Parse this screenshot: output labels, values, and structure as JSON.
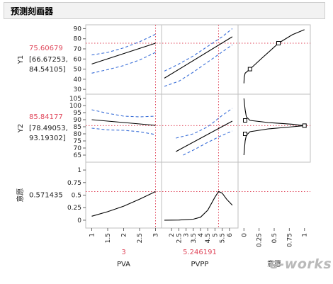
{
  "header": {
    "title": "预测刻画器"
  },
  "responses": [
    {
      "name": "Y1",
      "value": "75.60679",
      "ci": "[66.67253,",
      "ci2": "84.54105]"
    },
    {
      "name": "Y2",
      "value": "85.84177",
      "ci": "[78.49053,",
      "ci2": "93.19302]"
    },
    {
      "name": "意愿",
      "value": "0.571435"
    }
  ],
  "factors": [
    {
      "name": "PVA",
      "value": "3"
    },
    {
      "name": "PVPP",
      "value": "5.246191"
    },
    {
      "name": "意愿"
    }
  ],
  "watermark": "e-works",
  "colors": {
    "fit": "#000000",
    "ci": "#3a6fd8",
    "crosshair": "#e0475b",
    "frame": "#bfbfbf"
  },
  "chart_data": {
    "type": "line",
    "xaxes": [
      {
        "name": "PVA",
        "range": [
          0.9,
          3.1
        ],
        "ticks": [
          1,
          1.5,
          2,
          2.5,
          3
        ],
        "current": 3
      },
      {
        "name": "PVPP",
        "range": [
          1.5,
          6.4
        ],
        "ticks": [
          2,
          2.5,
          3,
          3.5,
          4,
          4.5,
          5,
          5.5,
          6
        ],
        "current": 5.246191
      },
      {
        "name": "意愿",
        "range": [
          -0.05,
          1.05
        ],
        "ticks": [
          0,
          0.25,
          0.5,
          0.75,
          1
        ]
      }
    ],
    "yaxes": [
      {
        "name": "Y1",
        "range": [
          28,
          91
        ],
        "ticks": [
          30,
          40,
          50,
          60,
          70,
          80,
          90
        ],
        "current": 75.60679
      },
      {
        "name": "Y2",
        "range": [
          62,
          106
        ],
        "ticks": [
          65,
          70,
          75,
          80,
          85,
          90,
          95,
          100,
          105
        ],
        "current": 85.84177
      },
      {
        "name": "意愿",
        "range": [
          -0.1,
          1.1
        ],
        "ticks": [
          0,
          0.25,
          0.5,
          0.75,
          1
        ],
        "current": 0.571435
      }
    ],
    "panels": [
      {
        "row": 0,
        "col": 0,
        "fit": [
          [
            1,
            55
          ],
          [
            3,
            75.6
          ]
        ],
        "lower": [
          [
            1,
            46
          ],
          [
            1.5,
            49.5
          ],
          [
            2,
            53.5
          ],
          [
            2.5,
            59
          ],
          [
            3,
            66.5
          ]
        ],
        "upper": [
          [
            1,
            64
          ],
          [
            1.5,
            66.5
          ],
          [
            2,
            71
          ],
          [
            2.5,
            77
          ],
          [
            3,
            84.5
          ]
        ]
      },
      {
        "row": 0,
        "col": 1,
        "fit": [
          [
            1.5,
            41
          ],
          [
            6.2,
            82
          ]
        ],
        "lower": [
          [
            1.5,
            33
          ],
          [
            2.5,
            38
          ],
          [
            3.5,
            47
          ],
          [
            4.5,
            57
          ],
          [
            5.5,
            67
          ],
          [
            6.2,
            74
          ]
        ],
        "upper": [
          [
            1.5,
            48
          ],
          [
            2.5,
            55
          ],
          [
            3.5,
            63
          ],
          [
            4.5,
            72.5
          ],
          [
            5.5,
            82
          ],
          [
            6.2,
            90
          ]
        ]
      },
      {
        "row": 0,
        "col": 2,
        "fit": [
          [
            0,
            36
          ],
          [
            0.005,
            42
          ],
          [
            0.02,
            46
          ],
          [
            0.1,
            50
          ],
          [
            0.3,
            61
          ],
          [
            0.57,
            75.6
          ],
          [
            0.8,
            84
          ],
          [
            1.0,
            89
          ]
        ],
        "markers": [
          [
            0.1,
            50
          ],
          [
            0.57,
            75.6
          ]
        ]
      },
      {
        "row": 1,
        "col": 0,
        "fit": [
          [
            1,
            90
          ],
          [
            3,
            86
          ]
        ],
        "lower": [
          [
            1,
            84
          ],
          [
            1.5,
            82.8
          ],
          [
            2,
            82.5
          ],
          [
            2.5,
            81.5
          ],
          [
            3,
            79.5
          ]
        ],
        "upper": [
          [
            1,
            97
          ],
          [
            1.5,
            94.5
          ],
          [
            2,
            92.5
          ],
          [
            2.5,
            92
          ],
          [
            3,
            92.5
          ]
        ]
      },
      {
        "row": 1,
        "col": 1,
        "fit": [
          [
            2.3,
            67.5
          ],
          [
            6.2,
            89
          ]
        ],
        "lower": [
          [
            2.8,
            65
          ],
          [
            3.5,
            68.5
          ],
          [
            4.5,
            74
          ],
          [
            5.5,
            79
          ],
          [
            6.2,
            82
          ]
        ],
        "upper": [
          [
            2.3,
            77
          ],
          [
            3.5,
            80
          ],
          [
            4.5,
            85
          ],
          [
            5.5,
            93
          ],
          [
            6.2,
            98
          ]
        ]
      },
      {
        "row": 1,
        "col": 2,
        "fit": [
          [
            0,
            65
          ],
          [
            0.01,
            70
          ],
          [
            0.02,
            75
          ],
          [
            0.04,
            79
          ],
          [
            0.1,
            81.5
          ],
          [
            0.4,
            83.5
          ],
          [
            0.8,
            85
          ],
          [
            1.0,
            85.8
          ],
          [
            0.8,
            86.8
          ],
          [
            0.4,
            88
          ],
          [
            0.1,
            89.5
          ],
          [
            0.04,
            92
          ],
          [
            0.02,
            97
          ],
          [
            0.01,
            101
          ],
          [
            0,
            105
          ]
        ],
        "markers": [
          [
            0.02,
            80
          ],
          [
            0.02,
            89.5
          ],
          [
            1.0,
            85.8
          ]
        ]
      },
      {
        "row": 2,
        "col": 0,
        "fit": [
          [
            1,
            0.08
          ],
          [
            1.5,
            0.17
          ],
          [
            2,
            0.28
          ],
          [
            2.5,
            0.42
          ],
          [
            3,
            0.571
          ]
        ]
      },
      {
        "row": 2,
        "col": 1,
        "fit": [
          [
            1.5,
            0
          ],
          [
            2.5,
            0.003
          ],
          [
            3.5,
            0.02
          ],
          [
            4,
            0.06
          ],
          [
            4.5,
            0.2
          ],
          [
            5,
            0.46
          ],
          [
            5.25,
            0.571
          ],
          [
            5.5,
            0.54
          ],
          [
            5.8,
            0.42
          ],
          [
            6.2,
            0.3
          ]
        ]
      }
    ]
  }
}
